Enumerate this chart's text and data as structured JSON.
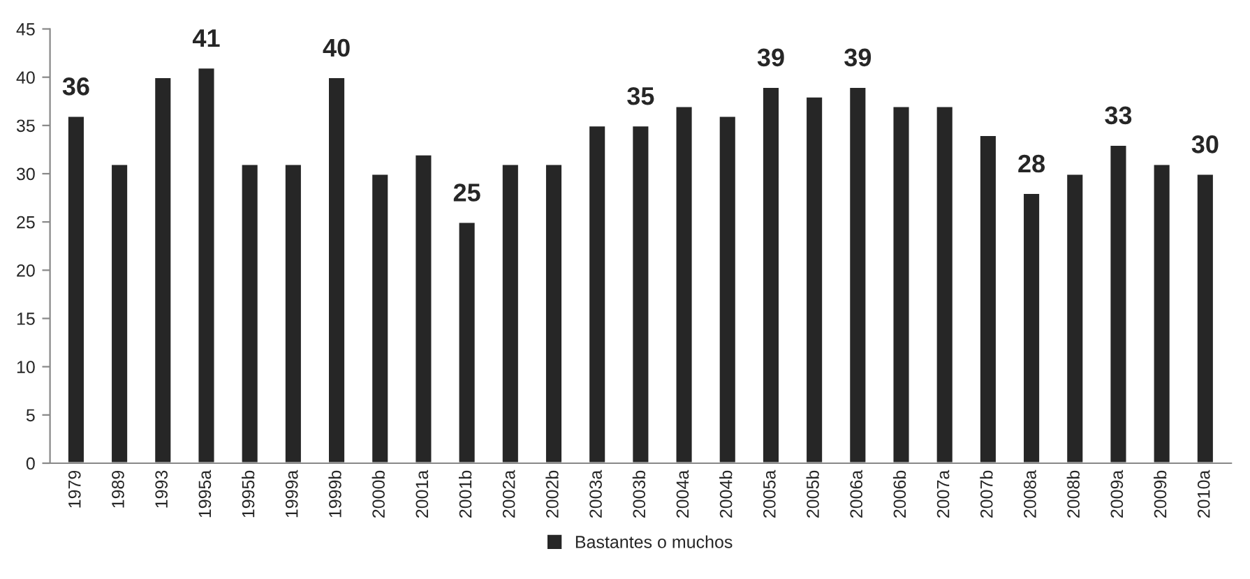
{
  "chart_data": {
    "type": "bar",
    "categories": [
      "1979",
      "1989",
      "1993",
      "1995a",
      "1995b",
      "1999a",
      "1999b",
      "2000b",
      "2001a",
      "2001b",
      "2002a",
      "2002b",
      "2003a",
      "2003b",
      "2004a",
      "2004b",
      "2005a",
      "2005b",
      "2006a",
      "2006b",
      "2007a",
      "2007b",
      "2008a",
      "2008b",
      "2009a",
      "2009b",
      "2010a"
    ],
    "series": [
      {
        "name": "Bastantes o muchos",
        "color": "#262626",
        "values": [
          36,
          31,
          40,
          41,
          31,
          31,
          40,
          30,
          32,
          25,
          31,
          31,
          35,
          35,
          37,
          36,
          39,
          38,
          39,
          37,
          37,
          34,
          28,
          30,
          33,
          31,
          30
        ],
        "value_labels": [
          "36",
          null,
          null,
          "41",
          null,
          null,
          "40",
          null,
          null,
          "25",
          null,
          null,
          null,
          "35",
          null,
          null,
          "39",
          null,
          "39",
          null,
          null,
          null,
          "28",
          null,
          "33",
          null,
          "30"
        ]
      }
    ],
    "ylim": [
      0,
      45
    ],
    "yticks": [
      0,
      5,
      10,
      15,
      20,
      25,
      30,
      35,
      40,
      45
    ],
    "grid": false,
    "legend": "bottom"
  }
}
